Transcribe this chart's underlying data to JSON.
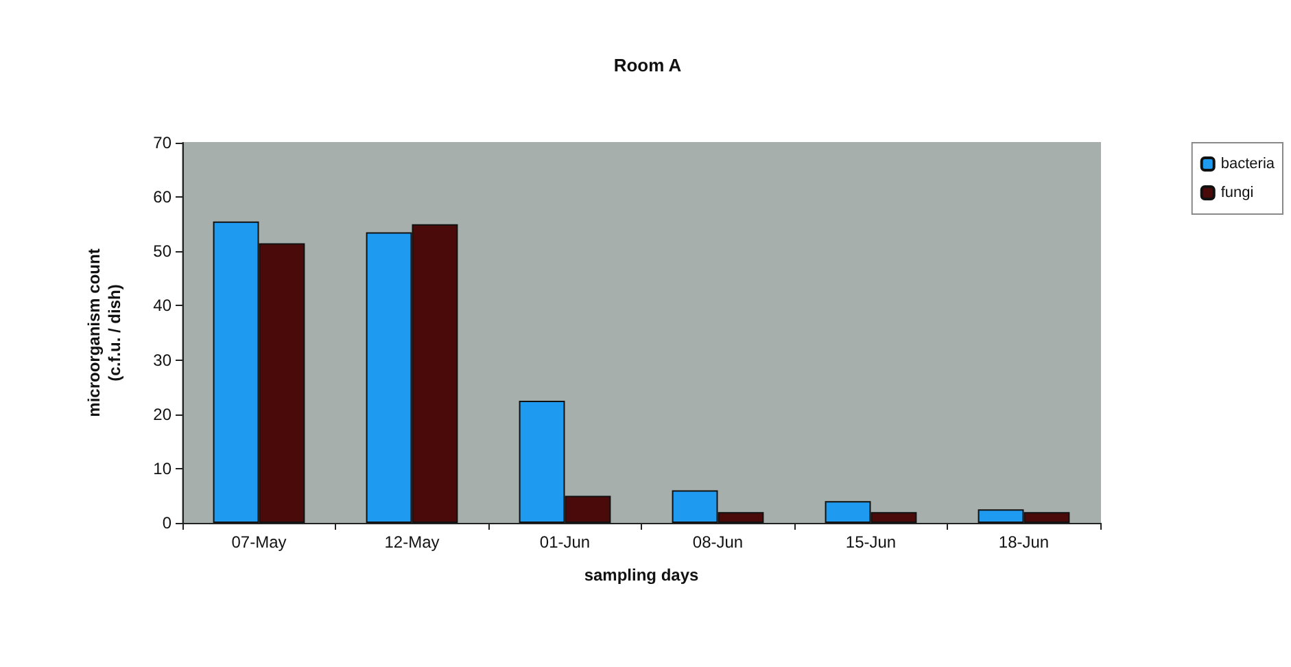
{
  "chart_data": {
    "type": "bar",
    "title": "Room A",
    "xlabel": "sampling days",
    "ylabel": "microorganism count\n(c.f.u. / dish)",
    "categories": [
      "07-May",
      "12-May",
      "01-Jun",
      "08-Jun",
      "15-Jun",
      "18-Jun"
    ],
    "series": [
      {
        "name": "bacteria",
        "color": "#1e9bf0",
        "values": [
          55.5,
          53.5,
          22.5,
          6,
          4,
          2.5
        ]
      },
      {
        "name": "fungi",
        "color": "#4a0a0a",
        "values": [
          51.5,
          55,
          5,
          2,
          2,
          2
        ]
      }
    ],
    "ylim": [
      0,
      70
    ],
    "yticks": [
      0,
      10,
      20,
      30,
      40,
      50,
      60,
      70
    ],
    "grid": false,
    "legend": "top right"
  }
}
